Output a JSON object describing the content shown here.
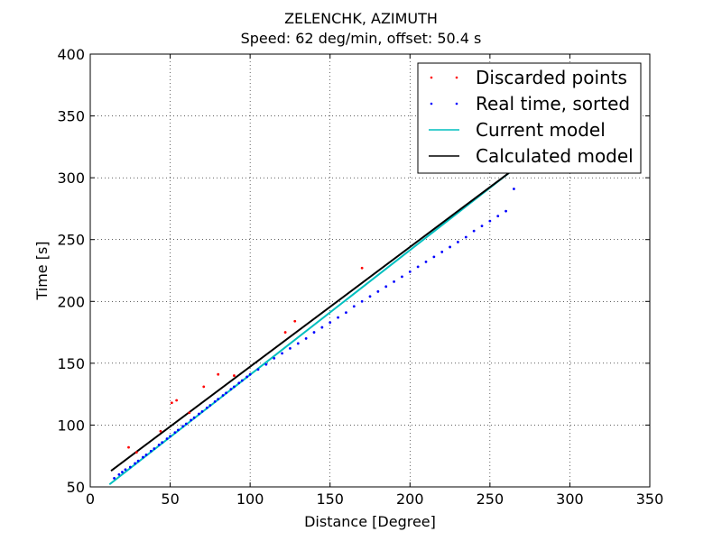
{
  "chart_data": {
    "type": "scatter",
    "title": "ZELENCHK, AZIMUTH",
    "subtitle": "Speed: 62 deg/min, offset: 50.4 s",
    "xlabel": "Distance [Degree]",
    "ylabel": "Time [s]",
    "xlim": [
      0,
      350
    ],
    "ylim": [
      50,
      400
    ],
    "xticks": [
      0,
      50,
      100,
      150,
      200,
      250,
      300,
      350
    ],
    "yticks": [
      50,
      100,
      150,
      200,
      250,
      300,
      350,
      400
    ],
    "grid": true,
    "legend_position": "top-right",
    "colors": {
      "discarded": "#ff0000",
      "real_time": "#0000ff",
      "current_model": "#00bfbf",
      "calculated_model": "#000000"
    },
    "series": [
      {
        "name": "Discarded points",
        "kind": "points",
        "x": [
          24,
          29,
          44,
          51,
          54,
          62,
          71,
          80,
          90,
          122,
          128,
          170
        ],
        "y": [
          82,
          78,
          95,
          118,
          120,
          110,
          131,
          141,
          140,
          175,
          184,
          227
        ]
      },
      {
        "name": "Real time, sorted",
        "kind": "points",
        "x": [
          15,
          18,
          20,
          22,
          25,
          28,
          30,
          33,
          35,
          38,
          40,
          43,
          45,
          48,
          50,
          53,
          55,
          58,
          60,
          63,
          65,
          68,
          70,
          73,
          75,
          78,
          80,
          83,
          85,
          88,
          90,
          93,
          95,
          98,
          100,
          105,
          110,
          115,
          120,
          125,
          130,
          135,
          140,
          145,
          150,
          155,
          160,
          165,
          170,
          175,
          180,
          185,
          190,
          195,
          200,
          205,
          210,
          215,
          220,
          225,
          230,
          235,
          240,
          245,
          250,
          255,
          260,
          265
        ],
        "y": [
          57,
          60,
          62,
          64,
          66,
          69,
          71,
          74,
          76,
          79,
          81,
          84,
          86,
          89,
          91,
          94,
          96,
          99,
          101,
          104,
          106,
          109,
          111,
          114,
          116,
          119,
          121,
          124,
          126,
          129,
          131,
          134,
          136,
          139,
          141,
          145,
          149,
          154,
          158,
          162,
          166,
          170,
          175,
          179,
          183,
          187,
          191,
          196,
          200,
          204,
          208,
          212,
          216,
          220,
          224,
          228,
          232,
          236,
          240,
          244,
          248,
          252,
          257,
          261,
          265,
          269,
          273,
          291
        ]
      },
      {
        "name": "Current model",
        "kind": "line",
        "x": [
          12,
          263
        ],
        "y": [
          52,
          305
        ]
      },
      {
        "name": "Calculated model",
        "kind": "line",
        "x": [
          13,
          263
        ],
        "y": [
          63,
          305
        ]
      }
    ]
  }
}
